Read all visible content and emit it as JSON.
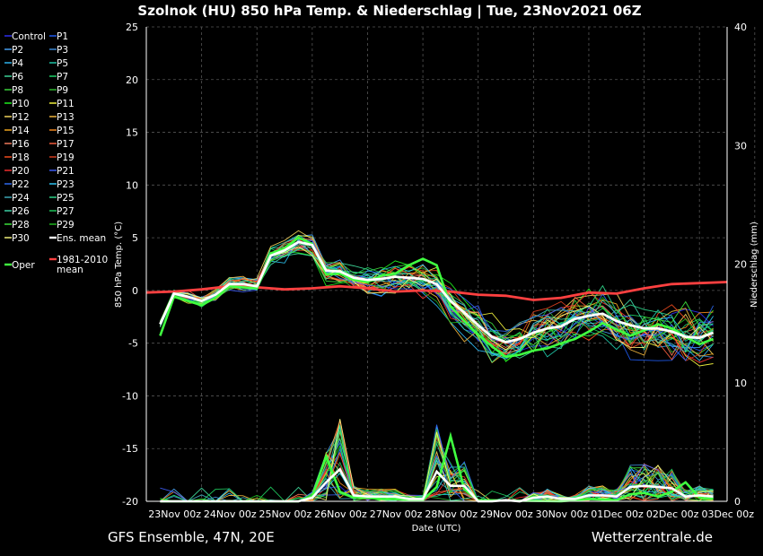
{
  "chart_data": {
    "type": "line",
    "title": "Szolnok  (HU)  850 hPa Temp. & Niederschlag | Tue, 23Nov2021 06Z",
    "ylabel": "850 hPa Temp. (°C)",
    "y2label": "Niederschlag (mm)",
    "xlabel": "Date (UTC)",
    "ylim": [
      -20,
      25
    ],
    "y2lim": [
      0,
      40
    ],
    "yticks": [
      25,
      20,
      15,
      10,
      5,
      0,
      -5,
      -10,
      -15,
      -20
    ],
    "y2ticks": [
      40,
      30,
      20,
      10,
      0
    ],
    "xlim_hours": [
      0,
      252
    ],
    "xticks": [
      "23Nov 00z",
      "24Nov 00z",
      "25Nov 00z",
      "26Nov 00z",
      "27Nov 00z",
      "28Nov 00z",
      "29Nov 00z",
      "30Nov 00z",
      "01Dec 00z",
      "02Dec 00z",
      "03Dec 00z"
    ],
    "grid": true,
    "legend_position": "left",
    "legend": [
      "Control",
      "P1",
      "P2",
      "P3",
      "P4",
      "P5",
      "P6",
      "P7",
      "P8",
      "P9",
      "P10",
      "P11",
      "P12",
      "P13",
      "P14",
      "P15",
      "P16",
      "P17",
      "P18",
      "P19",
      "P20",
      "P21",
      "P22",
      "P23",
      "P24",
      "P25",
      "P26",
      "P27",
      "P28",
      "P29",
      "P30",
      "Ens. mean",
      "Oper",
      "1981-2010\nmean"
    ],
    "series_colors": [
      "#3030ff",
      "#2060ff",
      "#4aa8ff",
      "#4090e0",
      "#30c0ff",
      "#20d0b0",
      "#40e0a0",
      "#20e070",
      "#40e040",
      "#30c030",
      "#20ff20",
      "#ffff40",
      "#ffe060",
      "#ffc040",
      "#ffb020",
      "#ff9020",
      "#ff8060",
      "#ff6040",
      "#ff5020",
      "#e04020",
      "#ff3030",
      "#4060ff",
      "#3070ff",
      "#30d0ff",
      "#40b0c0",
      "#30e090",
      "#40e0b0",
      "#20d060",
      "#40f040",
      "#20c020",
      "#ffff80",
      "#ffffff",
      "#40ff40",
      "#ff4040"
    ],
    "ens_mean_temp": [
      [
        6,
        -3.2
      ],
      [
        12,
        -0.3
      ],
      [
        18,
        -0.6
      ],
      [
        24,
        -1.0
      ],
      [
        30,
        -0.4
      ],
      [
        36,
        0.6
      ],
      [
        42,
        0.6
      ],
      [
        48,
        0.4
      ],
      [
        54,
        3.3
      ],
      [
        60,
        3.8
      ],
      [
        66,
        4.6
      ],
      [
        72,
        4.3
      ],
      [
        78,
        1.9
      ],
      [
        84,
        1.8
      ],
      [
        90,
        1.2
      ],
      [
        96,
        1.0
      ],
      [
        102,
        1.1
      ],
      [
        108,
        1.3
      ],
      [
        114,
        1.2
      ],
      [
        120,
        1.1
      ],
      [
        126,
        0.6
      ],
      [
        132,
        -1.0
      ],
      [
        138,
        -2.1
      ],
      [
        144,
        -3.3
      ],
      [
        150,
        -4.4
      ],
      [
        156,
        -4.9
      ],
      [
        162,
        -4.6
      ],
      [
        168,
        -4.0
      ],
      [
        174,
        -3.6
      ],
      [
        180,
        -3.4
      ],
      [
        186,
        -2.7
      ],
      [
        192,
        -2.4
      ],
      [
        198,
        -2.2
      ],
      [
        204,
        -2.9
      ],
      [
        210,
        -3.3
      ],
      [
        216,
        -3.6
      ],
      [
        222,
        -3.6
      ],
      [
        228,
        -3.9
      ],
      [
        234,
        -4.4
      ],
      [
        240,
        -4.5
      ],
      [
        246,
        -4.0
      ]
    ],
    "climate_mean_temp": [
      [
        0,
        -0.2
      ],
      [
        12,
        -0.1
      ],
      [
        24,
        0.1
      ],
      [
        36,
        0.4
      ],
      [
        48,
        0.3
      ],
      [
        60,
        0.1
      ],
      [
        72,
        0.2
      ],
      [
        84,
        0.4
      ],
      [
        96,
        0.2
      ],
      [
        108,
        -0.1
      ],
      [
        120,
        0.0
      ],
      [
        132,
        -0.1
      ],
      [
        144,
        -0.4
      ],
      [
        156,
        -0.5
      ],
      [
        168,
        -0.9
      ],
      [
        180,
        -0.7
      ],
      [
        192,
        -0.2
      ],
      [
        204,
        -0.3
      ],
      [
        216,
        0.2
      ],
      [
        228,
        0.6
      ],
      [
        240,
        0.7
      ],
      [
        252,
        0.8
      ]
    ],
    "oper_temp": [
      [
        6,
        -4.3
      ],
      [
        12,
        -0.6
      ],
      [
        18,
        -1.0
      ],
      [
        24,
        -1.4
      ],
      [
        30,
        -0.7
      ],
      [
        36,
        0.4
      ],
      [
        42,
        0.3
      ],
      [
        48,
        0.2
      ],
      [
        54,
        3.5
      ],
      [
        60,
        4.0
      ],
      [
        66,
        5.0
      ],
      [
        72,
        4.4
      ],
      [
        78,
        1.5
      ],
      [
        84,
        1.6
      ],
      [
        90,
        1.0
      ],
      [
        96,
        0.8
      ],
      [
        102,
        1.4
      ],
      [
        108,
        1.6
      ],
      [
        114,
        2.4
      ],
      [
        120,
        3.0
      ],
      [
        126,
        2.4
      ],
      [
        132,
        -1.5
      ],
      [
        138,
        -2.9
      ],
      [
        144,
        -4.2
      ],
      [
        150,
        -5.3
      ],
      [
        156,
        -6.3
      ],
      [
        162,
        -6.1
      ],
      [
        168,
        -5.7
      ],
      [
        174,
        -5.5
      ],
      [
        180,
        -5.0
      ],
      [
        186,
        -4.6
      ],
      [
        192,
        -3.9
      ],
      [
        198,
        -3.1
      ],
      [
        204,
        -3.7
      ],
      [
        210,
        -4.3
      ],
      [
        216,
        -3.8
      ],
      [
        222,
        -3.2
      ],
      [
        228,
        -3.6
      ],
      [
        234,
        -4.4
      ],
      [
        240,
        -5.1
      ],
      [
        246,
        -4.6
      ]
    ],
    "ens_mean_precip_mm": [
      [
        6,
        0
      ],
      [
        12,
        0
      ],
      [
        24,
        0
      ],
      [
        36,
        0
      ],
      [
        48,
        0
      ],
      [
        66,
        0
      ],
      [
        72,
        0.3
      ],
      [
        78,
        1.6
      ],
      [
        84,
        2.7
      ],
      [
        90,
        0.5
      ],
      [
        96,
        0.4
      ],
      [
        102,
        0.4
      ],
      [
        108,
        0.4
      ],
      [
        114,
        0.2
      ],
      [
        120,
        0.2
      ],
      [
        126,
        2.5
      ],
      [
        132,
        1.3
      ],
      [
        138,
        1.3
      ],
      [
        144,
        0
      ],
      [
        150,
        0
      ],
      [
        156,
        0.1
      ],
      [
        162,
        0
      ],
      [
        168,
        0.3
      ],
      [
        174,
        0.4
      ],
      [
        180,
        0.2
      ],
      [
        186,
        0.2
      ],
      [
        192,
        0.5
      ],
      [
        198,
        0.5
      ],
      [
        204,
        0.4
      ],
      [
        210,
        1.2
      ],
      [
        216,
        1.3
      ],
      [
        222,
        1.2
      ],
      [
        228,
        1.1
      ],
      [
        234,
        0.4
      ],
      [
        240,
        0.5
      ],
      [
        246,
        0.4
      ]
    ],
    "oper_precip_mm": [
      [
        6,
        0
      ],
      [
        48,
        0
      ],
      [
        66,
        0
      ],
      [
        72,
        0.4
      ],
      [
        78,
        3.8
      ],
      [
        84,
        0.8
      ],
      [
        90,
        0.3
      ],
      [
        96,
        0.3
      ],
      [
        102,
        0.2
      ],
      [
        108,
        0.2
      ],
      [
        114,
        0.1
      ],
      [
        120,
        0.1
      ],
      [
        126,
        1.2
      ],
      [
        132,
        5.5
      ],
      [
        138,
        1.0
      ],
      [
        144,
        0.1
      ],
      [
        180,
        0
      ],
      [
        192,
        0.2
      ],
      [
        204,
        0.1
      ],
      [
        210,
        0.6
      ],
      [
        216,
        0.7
      ],
      [
        222,
        0.4
      ],
      [
        228,
        0.8
      ],
      [
        234,
        1.6
      ],
      [
        240,
        0.3
      ],
      [
        246,
        0.2
      ]
    ],
    "precip_max_mm": 8.0
  },
  "footer": {
    "left": "GFS Ensemble, 47N, 20E",
    "right": "Wetterzentrale.de"
  }
}
